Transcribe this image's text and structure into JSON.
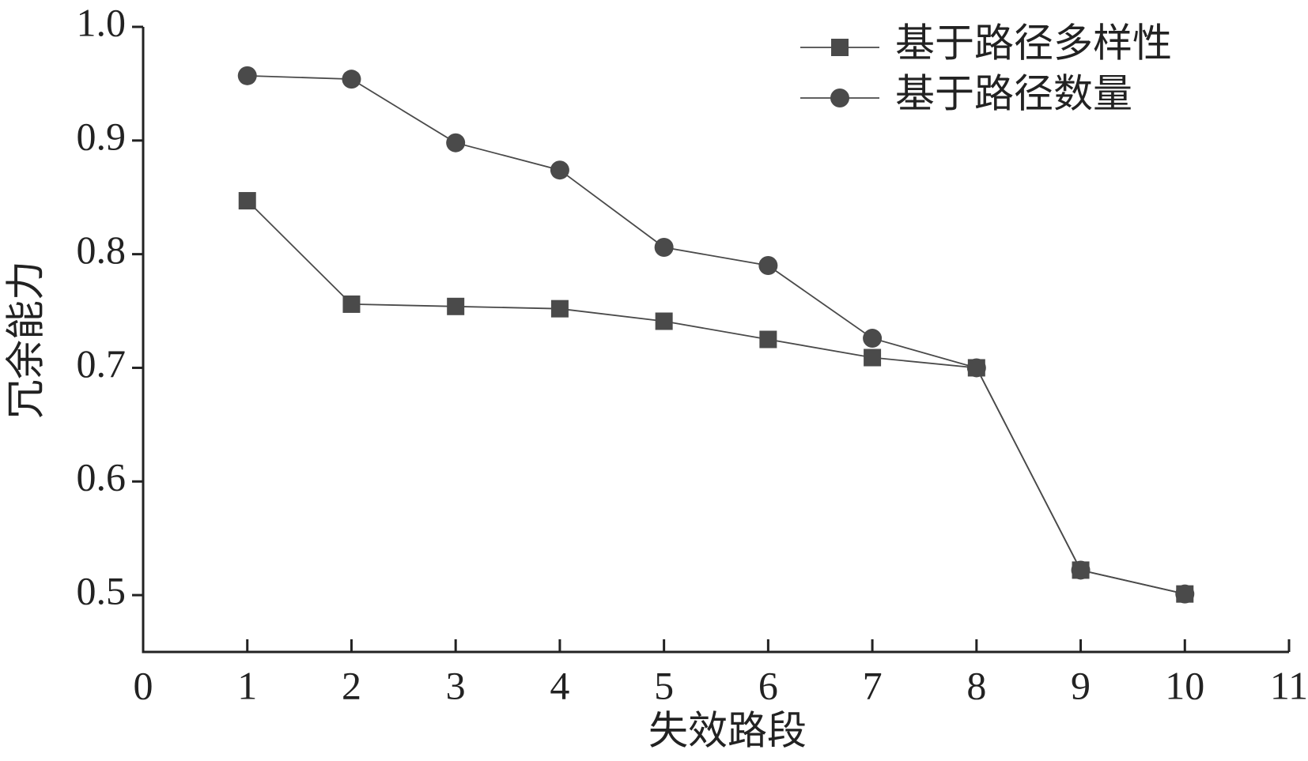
{
  "chart_data": {
    "type": "line",
    "x_label": "失效路段",
    "y_label": "冗余能力",
    "x": [
      1,
      2,
      3,
      4,
      5,
      6,
      7,
      8,
      9,
      10
    ],
    "series": [
      {
        "name": "基于路径多样性",
        "color": "#4a4a4a",
        "marker": "square",
        "values": [
          0.847,
          0.756,
          0.754,
          0.752,
          0.741,
          0.725,
          0.709,
          0.7,
          0.522,
          0.501
        ]
      },
      {
        "name": "基于路径数量",
        "color": "#4a4a4a",
        "marker": "circle",
        "values": [
          0.957,
          0.954,
          0.898,
          0.874,
          0.806,
          0.79,
          0.726,
          0.7,
          0.522,
          0.501
        ]
      }
    ],
    "xlim": [
      0,
      11
    ],
    "xticks": [
      0,
      1,
      2,
      3,
      4,
      5,
      6,
      7,
      8,
      9,
      10,
      11
    ],
    "ylim": [
      0.45,
      1.0
    ],
    "yticks": [
      0.5,
      0.6,
      0.7,
      0.8,
      0.9,
      {
        "value": 1,
        "label": "1.0"
      }
    ],
    "legend": "top-right"
  }
}
